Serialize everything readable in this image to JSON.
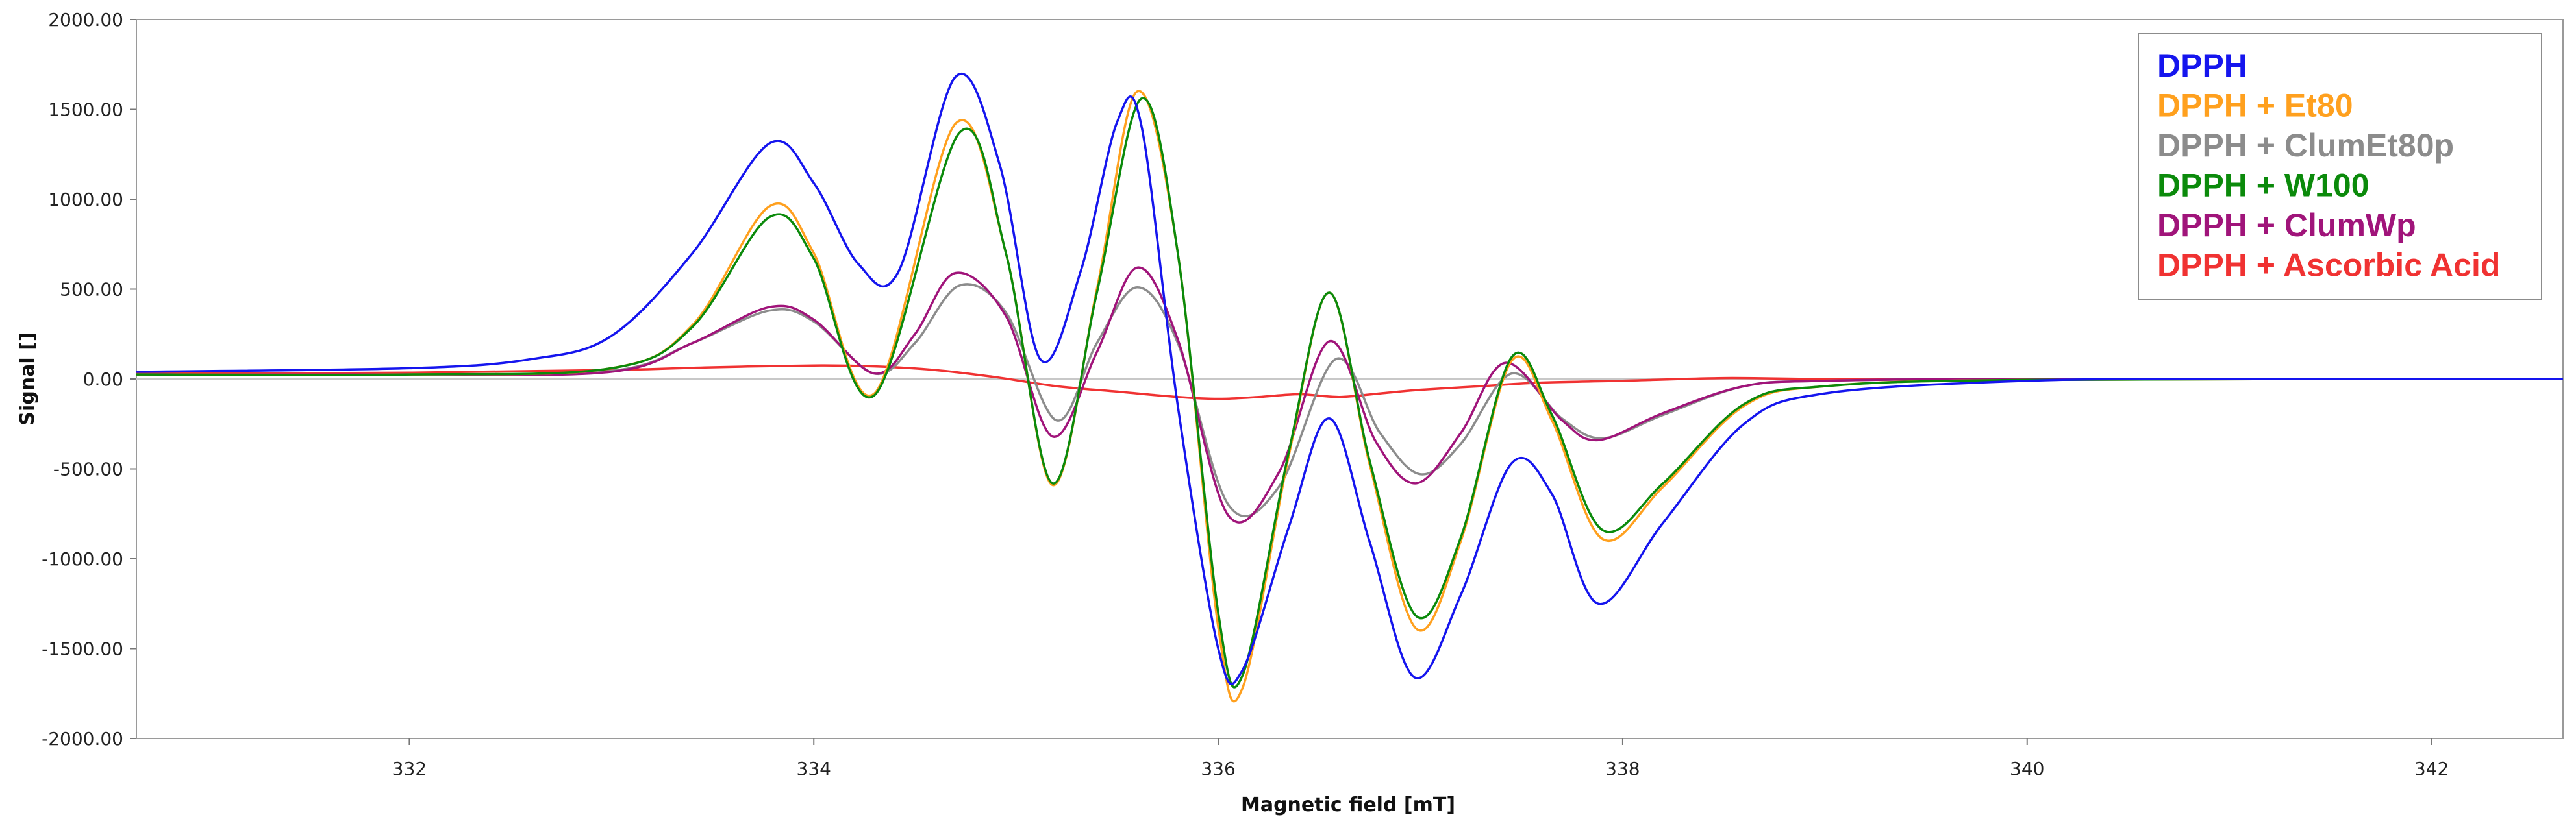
{
  "chart_data": {
    "type": "line",
    "xlabel": "Magnetic field [mT]",
    "ylabel": "Signal []",
    "xlim": [
      330.65,
      342.65
    ],
    "ylim": [
      -2000,
      2000
    ],
    "x_ticks": [
      332,
      334,
      336,
      338,
      340,
      342
    ],
    "x_tick_labels": [
      "332",
      "334",
      "336",
      "338",
      "340",
      "342"
    ],
    "y_ticks": [
      2000,
      1500,
      1000,
      500,
      0,
      -500,
      -1000,
      -1500,
      -2000
    ],
    "y_tick_labels": [
      "2000.00",
      "1500.00",
      "1000.00",
      "500.00",
      "0.00",
      "-500.00",
      "-1000.00",
      "-1500.00",
      "-2000.00"
    ],
    "grid": false,
    "legend_position": "top-right",
    "series": [
      {
        "name": "DPPH",
        "color": "#1515ee",
        "x": [
          330.65,
          332.0,
          332.6,
          333.0,
          333.4,
          333.78,
          334.0,
          334.22,
          334.42,
          334.7,
          334.92,
          335.12,
          335.32,
          335.5,
          335.62,
          335.8,
          336.0,
          336.12,
          336.35,
          336.55,
          336.75,
          336.97,
          337.2,
          337.45,
          337.65,
          337.88,
          338.2,
          338.6,
          339.0,
          340.0,
          341.0,
          342.65
        ],
        "y": [
          40,
          60,
          110,
          240,
          700,
          1310,
          1090,
          640,
          600,
          1680,
          1190,
          110,
          600,
          1430,
          1410,
          -150,
          -1500,
          -1620,
          -820,
          -220,
          -910,
          -1660,
          -1200,
          -470,
          -640,
          -1250,
          -800,
          -250,
          -80,
          -10,
          0,
          0
        ]
      },
      {
        "name": "DPPH + Et80",
        "color": "#ffa01e",
        "x": [
          330.65,
          332.0,
          333.0,
          333.4,
          333.78,
          334.0,
          334.3,
          334.7,
          334.95,
          335.18,
          335.4,
          335.6,
          335.8,
          336.0,
          336.12,
          336.35,
          336.55,
          336.75,
          336.98,
          337.2,
          337.45,
          337.65,
          337.9,
          338.2,
          338.6,
          339.0,
          340.0,
          342.65
        ],
        "y": [
          25,
          25,
          60,
          300,
          960,
          700,
          -80,
          1420,
          700,
          -590,
          500,
          1600,
          700,
          -1380,
          -1720,
          -420,
          480,
          -480,
          -1390,
          -900,
          100,
          -230,
          -890,
          -600,
          -150,
          -40,
          -5,
          0
        ]
      },
      {
        "name": "DPPH + ClumEt80p",
        "color": "#8c8c8c",
        "x": [
          330.65,
          332.0,
          333.0,
          333.4,
          333.78,
          334.0,
          334.3,
          334.5,
          334.72,
          334.95,
          335.2,
          335.4,
          335.6,
          335.8,
          336.05,
          336.3,
          336.58,
          336.8,
          337.0,
          337.2,
          337.45,
          337.7,
          337.9,
          338.2,
          338.6,
          339.0,
          340.0,
          342.65
        ],
        "y": [
          25,
          25,
          45,
          200,
          380,
          320,
          30,
          200,
          520,
          370,
          -230,
          200,
          510,
          200,
          -700,
          -600,
          110,
          -300,
          -530,
          -360,
          30,
          -220,
          -330,
          -200,
          -40,
          -10,
          0,
          0
        ]
      },
      {
        "name": "DPPH + W100",
        "color": "#0b8a0b",
        "x": [
          330.65,
          332.0,
          333.0,
          333.4,
          333.78,
          334.0,
          334.3,
          334.72,
          334.95,
          335.18,
          335.4,
          335.62,
          335.8,
          336.0,
          336.12,
          336.35,
          336.55,
          336.75,
          336.98,
          337.2,
          337.45,
          337.65,
          337.9,
          338.2,
          338.6,
          339.0,
          340.0,
          342.65
        ],
        "y": [
          25,
          25,
          60,
          290,
          900,
          670,
          -90,
          1370,
          700,
          -580,
          480,
          1560,
          700,
          -1300,
          -1650,
          -400,
          480,
          -460,
          -1320,
          -880,
          120,
          -200,
          -840,
          -580,
          -140,
          -40,
          -5,
          0
        ]
      },
      {
        "name": "DPPH + ClumWp",
        "color": "#a0147a",
        "x": [
          330.65,
          332.0,
          333.0,
          333.4,
          333.78,
          334.0,
          334.3,
          334.5,
          334.7,
          334.95,
          335.18,
          335.4,
          335.6,
          335.8,
          336.05,
          336.3,
          336.55,
          336.78,
          336.98,
          337.2,
          337.42,
          337.7,
          337.88,
          338.2,
          338.6,
          339.0,
          340.0,
          342.65
        ],
        "y": [
          25,
          25,
          40,
          200,
          400,
          330,
          30,
          250,
          590,
          350,
          -320,
          150,
          620,
          220,
          -760,
          -520,
          210,
          -350,
          -580,
          -300,
          90,
          -230,
          -340,
          -190,
          -40,
          -10,
          0,
          0
        ]
      },
      {
        "name": "DPPH + Ascorbic Acid",
        "color": "#f03232",
        "x": [
          330.65,
          332.0,
          333.0,
          333.5,
          334.0,
          334.3,
          334.6,
          334.9,
          335.2,
          335.5,
          335.8,
          336.0,
          336.2,
          336.4,
          336.6,
          336.8,
          337.0,
          337.3,
          337.6,
          338.0,
          338.5,
          339.0,
          340.0,
          342.65
        ],
        "y": [
          30,
          35,
          50,
          65,
          75,
          70,
          50,
          10,
          -40,
          -70,
          -100,
          -110,
          -100,
          -85,
          -100,
          -80,
          -60,
          -40,
          -20,
          -10,
          5,
          0,
          0,
          0
        ]
      }
    ]
  }
}
